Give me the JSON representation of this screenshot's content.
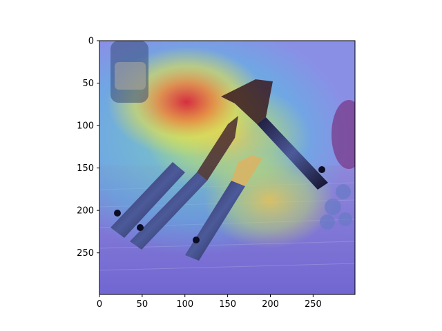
{
  "chart_data": {
    "type": "heatmap",
    "title": "",
    "xlabel": "",
    "ylabel": "",
    "description_role": "Grad-CAM style attention heatmap overlaid on a photo of three kitchen utensils (can openers / bottle opener) with dark handles on a wooden table",
    "xlim": [
      0,
      299
    ],
    "ylim": [
      299,
      0
    ],
    "xticks": [
      0,
      50,
      100,
      150,
      200,
      250
    ],
    "yticks": [
      0,
      50,
      100,
      150,
      200,
      250
    ],
    "colormap": "jet",
    "hotspots": [
      {
        "x": 100,
        "y": 75,
        "intensity": 1.0
      },
      {
        "x": 150,
        "y": 120,
        "intensity": 0.72
      },
      {
        "x": 200,
        "y": 190,
        "intensity": 0.6
      },
      {
        "x": 30,
        "y": 110,
        "intensity": 0.45
      }
    ]
  }
}
